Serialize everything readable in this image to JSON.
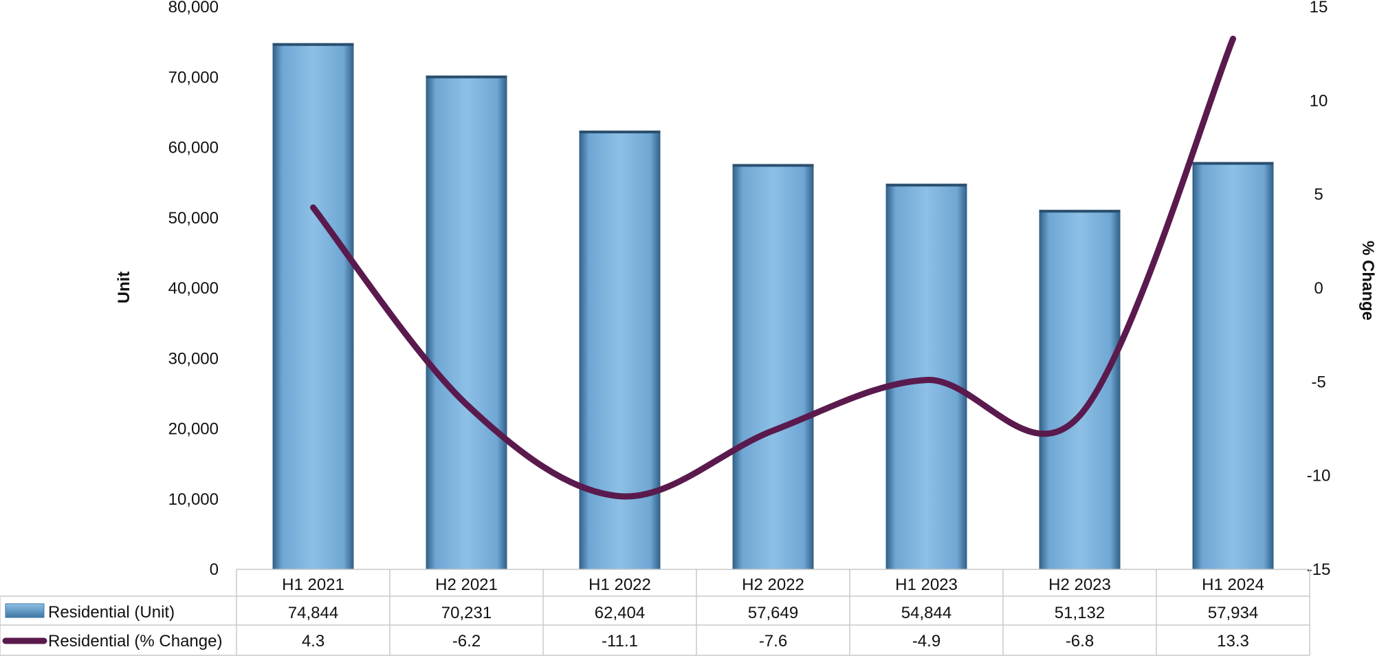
{
  "chart_data": {
    "type": "bar",
    "title": "",
    "xlabel": "",
    "ylabel": "Unit",
    "y2label": "% Change",
    "categories": [
      "H1 2021",
      "H2 2021",
      "H1 2022",
      "H2 2022",
      "H1 2023",
      "H2 2023",
      "H1 2024"
    ],
    "ylim": [
      0,
      80000
    ],
    "yticks": [
      "0",
      "10,000",
      "20,000",
      "30,000",
      "40,000",
      "50,000",
      "60,000",
      "70,000",
      "80,000"
    ],
    "y2lim": [
      -15,
      15
    ],
    "y2ticks": [
      "-15",
      "-10",
      "-5",
      "0",
      "5",
      "10",
      "15"
    ],
    "grid": false,
    "legend": "data-table",
    "series": [
      {
        "name": "Residential (Unit)",
        "type": "bar",
        "axis": "left",
        "color": "#7fb3dd",
        "values": [
          74844,
          70231,
          62404,
          57649,
          54844,
          51132,
          57934
        ],
        "labels": [
          "74,844",
          "70,231",
          "62,404",
          "57,649",
          "54,844",
          "51,132",
          "57,934"
        ]
      },
      {
        "name": "Residential (% Change)",
        "type": "line",
        "axis": "right",
        "smooth": true,
        "color": "#5a1a4d",
        "values": [
          4.3,
          -6.2,
          -11.1,
          -7.6,
          -4.9,
          -6.8,
          13.3
        ],
        "labels": [
          "4.3",
          "-6.2",
          "-11.1",
          "-7.6",
          "-4.9",
          "-6.8",
          "13.3"
        ]
      }
    ]
  }
}
